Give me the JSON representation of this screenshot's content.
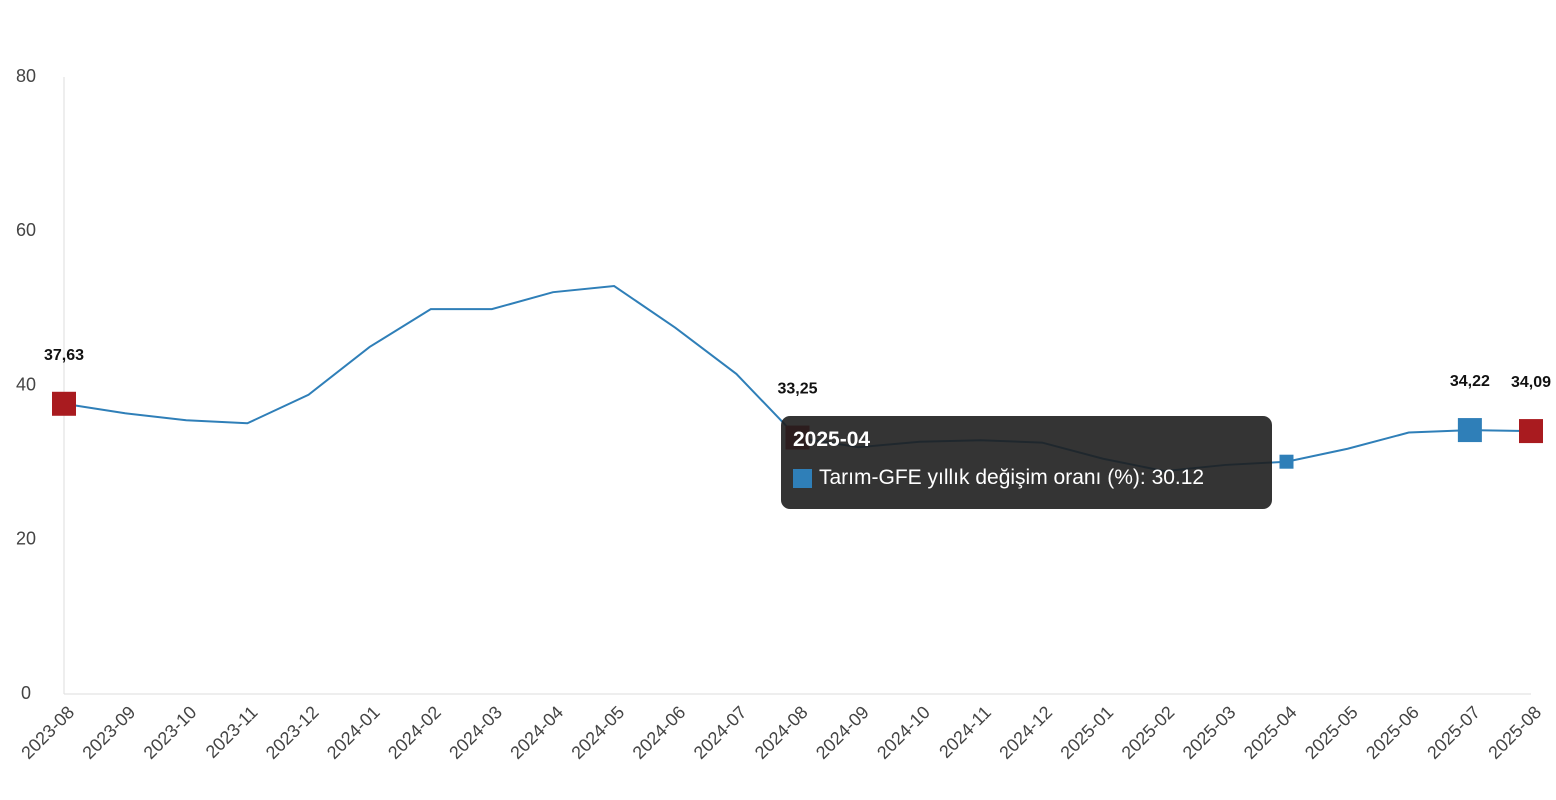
{
  "chart_data": {
    "type": "line",
    "categories": [
      "2023-08",
      "2023-09",
      "2023-10",
      "2023-11",
      "2023-12",
      "2024-01",
      "2024-02",
      "2024-03",
      "2024-04",
      "2024-05",
      "2024-06",
      "2024-07",
      "2024-08",
      "2024-09",
      "2024-10",
      "2024-11",
      "2024-12",
      "2025-01",
      "2025-02",
      "2025-03",
      "2025-04",
      "2025-05",
      "2025-06",
      "2025-07",
      "2025-08"
    ],
    "series": [
      {
        "name": "Tarım-GFE yıllık değişim oranı (%)",
        "color": "#2f7fb8",
        "values": [
          37.63,
          36.4,
          35.5,
          35.1,
          38.8,
          45.0,
          49.9,
          49.9,
          52.1,
          52.9,
          47.5,
          41.5,
          33.25,
          32.0,
          32.7,
          32.9,
          32.6,
          30.5,
          28.9,
          29.7,
          30.12,
          31.8,
          33.9,
          34.22,
          34.09
        ],
        "value_labels": [
          "37,63",
          null,
          null,
          null,
          null,
          null,
          null,
          null,
          null,
          null,
          null,
          null,
          "33,25",
          null,
          null,
          null,
          null,
          null,
          null,
          null,
          null,
          null,
          null,
          "34,22",
          "34,09"
        ],
        "marker_colors": [
          "#a91b1f",
          null,
          null,
          null,
          null,
          null,
          null,
          null,
          null,
          null,
          null,
          null,
          "#a91b1f",
          null,
          null,
          null,
          null,
          null,
          null,
          null,
          null,
          null,
          null,
          "#2f7fb8",
          "#a91b1f"
        ]
      }
    ],
    "ylim": [
      0,
      80
    ],
    "yticks": [
      0,
      20,
      40,
      60,
      80
    ],
    "tooltip": {
      "category": "2025-04",
      "value": 30.12
    }
  }
}
